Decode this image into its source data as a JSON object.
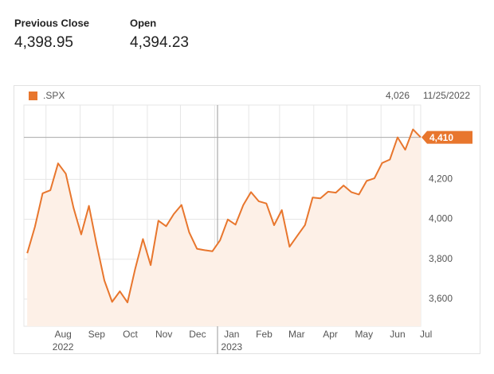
{
  "quote": {
    "items": [
      {
        "label": "Previous Close",
        "value": "4,398.95"
      },
      {
        "label": "Open",
        "value": "4,394.23"
      }
    ]
  },
  "chart_data": {
    "type": "line",
    "legend": ".SPX",
    "tooltip": {
      "value": "4,026",
      "date": "11/25/2022"
    },
    "series": [
      {
        "name": ".SPX",
        "color": "#e8762d",
        "fill": "#fdf0e7",
        "values": [
          3830,
          3962,
          4130,
          4145,
          4280,
          4228,
          4057,
          3924,
          4067,
          3873,
          3693,
          3586,
          3639,
          3583,
          3752,
          3901,
          3770,
          3993,
          3965,
          4026,
          4072,
          3934,
          3852,
          3845,
          3840,
          3895,
          3999,
          3973,
          4071,
          4136,
          4090,
          4079,
          3970,
          4046,
          3862,
          3917,
          3971,
          4109,
          4105,
          4138,
          4133,
          4169,
          4136,
          4124,
          4192,
          4205,
          4282,
          4299,
          4410,
          4348,
          4450,
          4410
        ]
      }
    ],
    "last": {
      "value": 4410,
      "label": "4,410"
    },
    "xlim": [
      -0.43,
      51
    ],
    "xticks": [
      {
        "value": 2.43,
        "label": "Aug",
        "year": "2022"
      },
      {
        "value": 6.86,
        "label": "Sep"
      },
      {
        "value": 11.14,
        "label": "Oct"
      },
      {
        "value": 15.57,
        "label": "Nov"
      },
      {
        "value": 19.86,
        "label": "Dec"
      },
      {
        "value": 24.29,
        "label": "Jan",
        "year": "2023"
      },
      {
        "value": 28.71,
        "label": "Feb"
      },
      {
        "value": 32.71,
        "label": "Mar"
      },
      {
        "value": 37.14,
        "label": "Apr"
      },
      {
        "value": 41.43,
        "label": "May"
      },
      {
        "value": 45.86,
        "label": "Jun"
      },
      {
        "value": 50.14,
        "label": "Jul"
      }
    ],
    "ylim": [
      3464,
      4572
    ],
    "yticks": [
      {
        "value": 3600,
        "label": "3,600"
      },
      {
        "value": 3800,
        "label": "3,800"
      },
      {
        "value": 4000,
        "label": "4,000"
      },
      {
        "value": 4200,
        "label": "4,200"
      }
    ],
    "grid": true
  }
}
